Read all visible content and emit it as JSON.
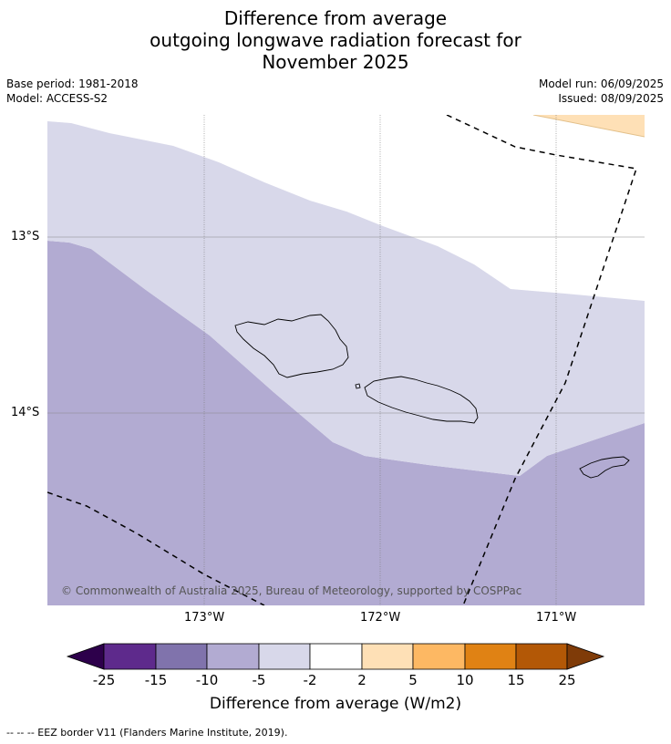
{
  "title": {
    "line1": "Difference from average",
    "line2": "outgoing longwave radiation forecast for",
    "line3": "November 2025"
  },
  "meta": {
    "base_period": "Base period: 1981-2018",
    "model": "Model: ACCESS-S2",
    "model_run": "Model run: 06/09/2025",
    "issued": "Issued: 08/09/2025"
  },
  "map": {
    "lat_labels": [
      "13°S",
      "14°S"
    ],
    "lon_labels": [
      "173°W",
      "172°W",
      "171°W"
    ],
    "copyright": "© Commonwealth of Australia 2025, Bureau of Meteorology, supported by COSPPac",
    "colors": {
      "band_minus_10_minus_5": "#b2abd2",
      "band_minus_5_minus_2": "#d8d8ea",
      "band_2_5": "#fee0b6"
    }
  },
  "legend": {
    "title": "Difference from average (W/m2)",
    "ticks": [
      "-25",
      "-15",
      "-10",
      "-5",
      "-2",
      "2",
      "5",
      "10",
      "15",
      "25"
    ],
    "colors": [
      "#5e2a8c",
      "#8073ac",
      "#b2abd2",
      "#d8d8ea",
      "#ffffff",
      "#fee0b6",
      "#fdb863",
      "#e08214",
      "#b35806"
    ],
    "low_extend_color": "#2d004b",
    "high_extend_color": "#7f3b08"
  },
  "footnote": "--  --  -- EEZ border V11 (Flanders Marine Institute, 2019)."
}
